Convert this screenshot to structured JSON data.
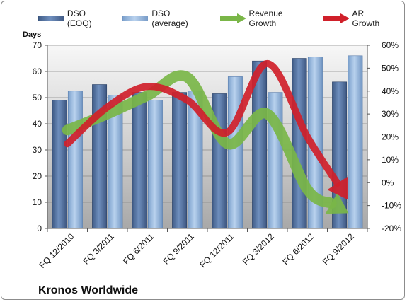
{
  "company": "Kronos Worldwide",
  "colors": {
    "dso_eoq": "#4f6f9e",
    "dso_avg": "#8fb3dc",
    "revenue_growth": "#7ab648",
    "ar_growth": "#d0202a"
  },
  "chart_data": {
    "type": "bar",
    "categories": [
      "FQ 12/2010",
      "FQ 3/2011",
      "FQ 6/2011",
      "FQ 9/2011",
      "FQ 12/2011",
      "FQ 3/2012",
      "FQ 6/2012",
      "FQ 9/2012"
    ],
    "series": [
      {
        "name": "DSO (EOQ)",
        "type": "bar",
        "axis": "left",
        "values": [
          49,
          55,
          52,
          52,
          51.5,
          64,
          65,
          56
        ]
      },
      {
        "name": "DSO (average)",
        "type": "bar",
        "axis": "left",
        "values": [
          52.5,
          51,
          49,
          52.5,
          58,
          52,
          65.5,
          66
        ]
      },
      {
        "name": "Revenue Growth",
        "type": "line-arrow",
        "axis": "right",
        "values": [
          23,
          30,
          38,
          46,
          17,
          30,
          -3,
          -13
        ]
      },
      {
        "name": "AR Growth",
        "type": "line-arrow",
        "axis": "right",
        "values": [
          17,
          33,
          42,
          36,
          22,
          52,
          20,
          -7
        ]
      }
    ],
    "ylabel": "Days",
    "ylim": [
      0,
      70
    ],
    "yticks": [
      0,
      10,
      20,
      30,
      40,
      50,
      60,
      70
    ],
    "y2lim": [
      -20,
      60
    ],
    "y2ticks": [
      "-20%",
      "-10%",
      "0%",
      "10%",
      "20%",
      "30%",
      "40%",
      "50%",
      "60%"
    ],
    "legend_position": "top",
    "grid": true
  }
}
